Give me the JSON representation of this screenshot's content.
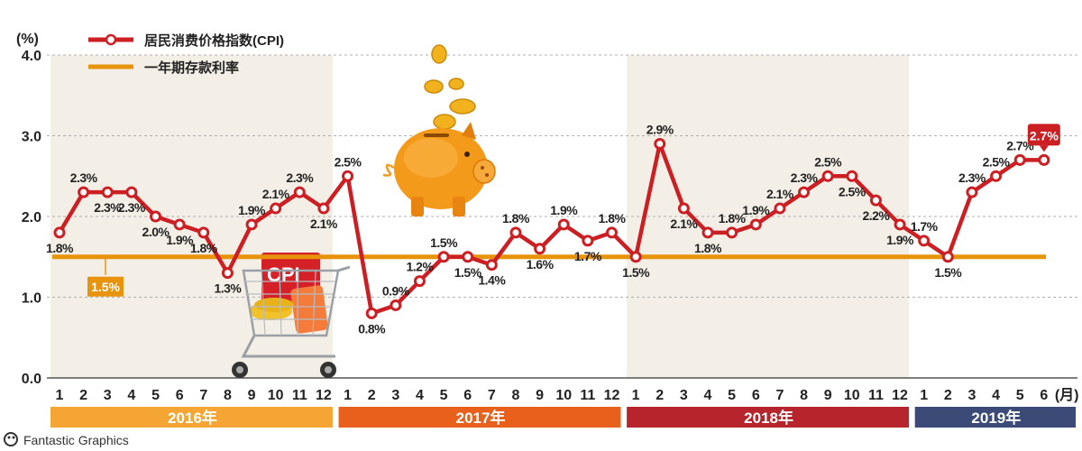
{
  "chart_data": {
    "type": "line",
    "ylabel": "(%)",
    "xlabel_unit": "(月)",
    "ylim": [
      0,
      4
    ],
    "yticks": [
      "0.0",
      "1.0",
      "2.0",
      "3.0",
      "4.0"
    ],
    "grid": true,
    "legend_position": "top-left",
    "x": [
      "1",
      "2",
      "3",
      "4",
      "5",
      "6",
      "7",
      "8",
      "9",
      "10",
      "11",
      "12",
      "1",
      "2",
      "3",
      "4",
      "5",
      "6",
      "7",
      "8",
      "9",
      "10",
      "11",
      "12",
      "1",
      "2",
      "3",
      "4",
      "5",
      "6",
      "7",
      "8",
      "9",
      "10",
      "11",
      "12",
      "1",
      "2",
      "3",
      "4",
      "5",
      "6"
    ],
    "series": [
      {
        "name": "居民消费价格指数(CPI)",
        "color": "#cc1f24",
        "values": [
          1.8,
          2.3,
          2.3,
          2.3,
          2.0,
          1.9,
          1.8,
          1.3,
          1.9,
          2.1,
          2.3,
          2.1,
          2.5,
          0.8,
          0.9,
          1.2,
          1.5,
          1.5,
          1.4,
          1.8,
          1.6,
          1.9,
          1.7,
          1.8,
          1.5,
          2.9,
          2.1,
          1.8,
          1.8,
          1.9,
          2.1,
          2.3,
          2.5,
          2.5,
          2.2,
          1.9,
          1.7,
          1.5,
          2.3,
          2.5,
          2.7,
          2.7
        ],
        "labels": [
          "1.8%",
          "2.3%",
          "2.3%",
          "2.3%",
          "2.0%",
          "1.9%",
          "1.8%",
          "1.3%",
          "1.9%",
          "2.1%",
          "2.3%",
          "2.1%",
          "2.5%",
          "0.8%",
          "0.9%",
          "1.2%",
          "1.5%",
          "1.5%",
          "1.4%",
          "1.8%",
          "1.6%",
          "1.9%",
          "1.7%",
          "1.8%",
          "1.5%",
          "2.9%",
          "2.1%",
          "1.8%",
          "1.8%",
          "1.9%",
          "2.1%",
          "2.3%",
          "2.5%",
          "2.5%",
          "2.2%",
          "1.9%",
          "1.7%",
          "1.5%",
          "2.3%",
          "2.5%",
          "2.7%",
          ""
        ],
        "last_label": "2.7%"
      },
      {
        "name": "一年期存款利率",
        "color": "#e8930c",
        "value": 1.5,
        "label": "1.5%"
      }
    ],
    "years": [
      {
        "label": "2016年",
        "color": "#f4a533"
      },
      {
        "label": "2017年",
        "color": "#e8601c"
      },
      {
        "label": "2018年",
        "color": "#b8242b"
      },
      {
        "label": "2019年",
        "color": "#3c4a78"
      }
    ],
    "shaded_years": [
      "2016年",
      "2018年"
    ]
  },
  "brand": {
    "name": "Fantastic Graphics"
  },
  "decorations": {
    "shopping_cart_tag": "CPI"
  }
}
